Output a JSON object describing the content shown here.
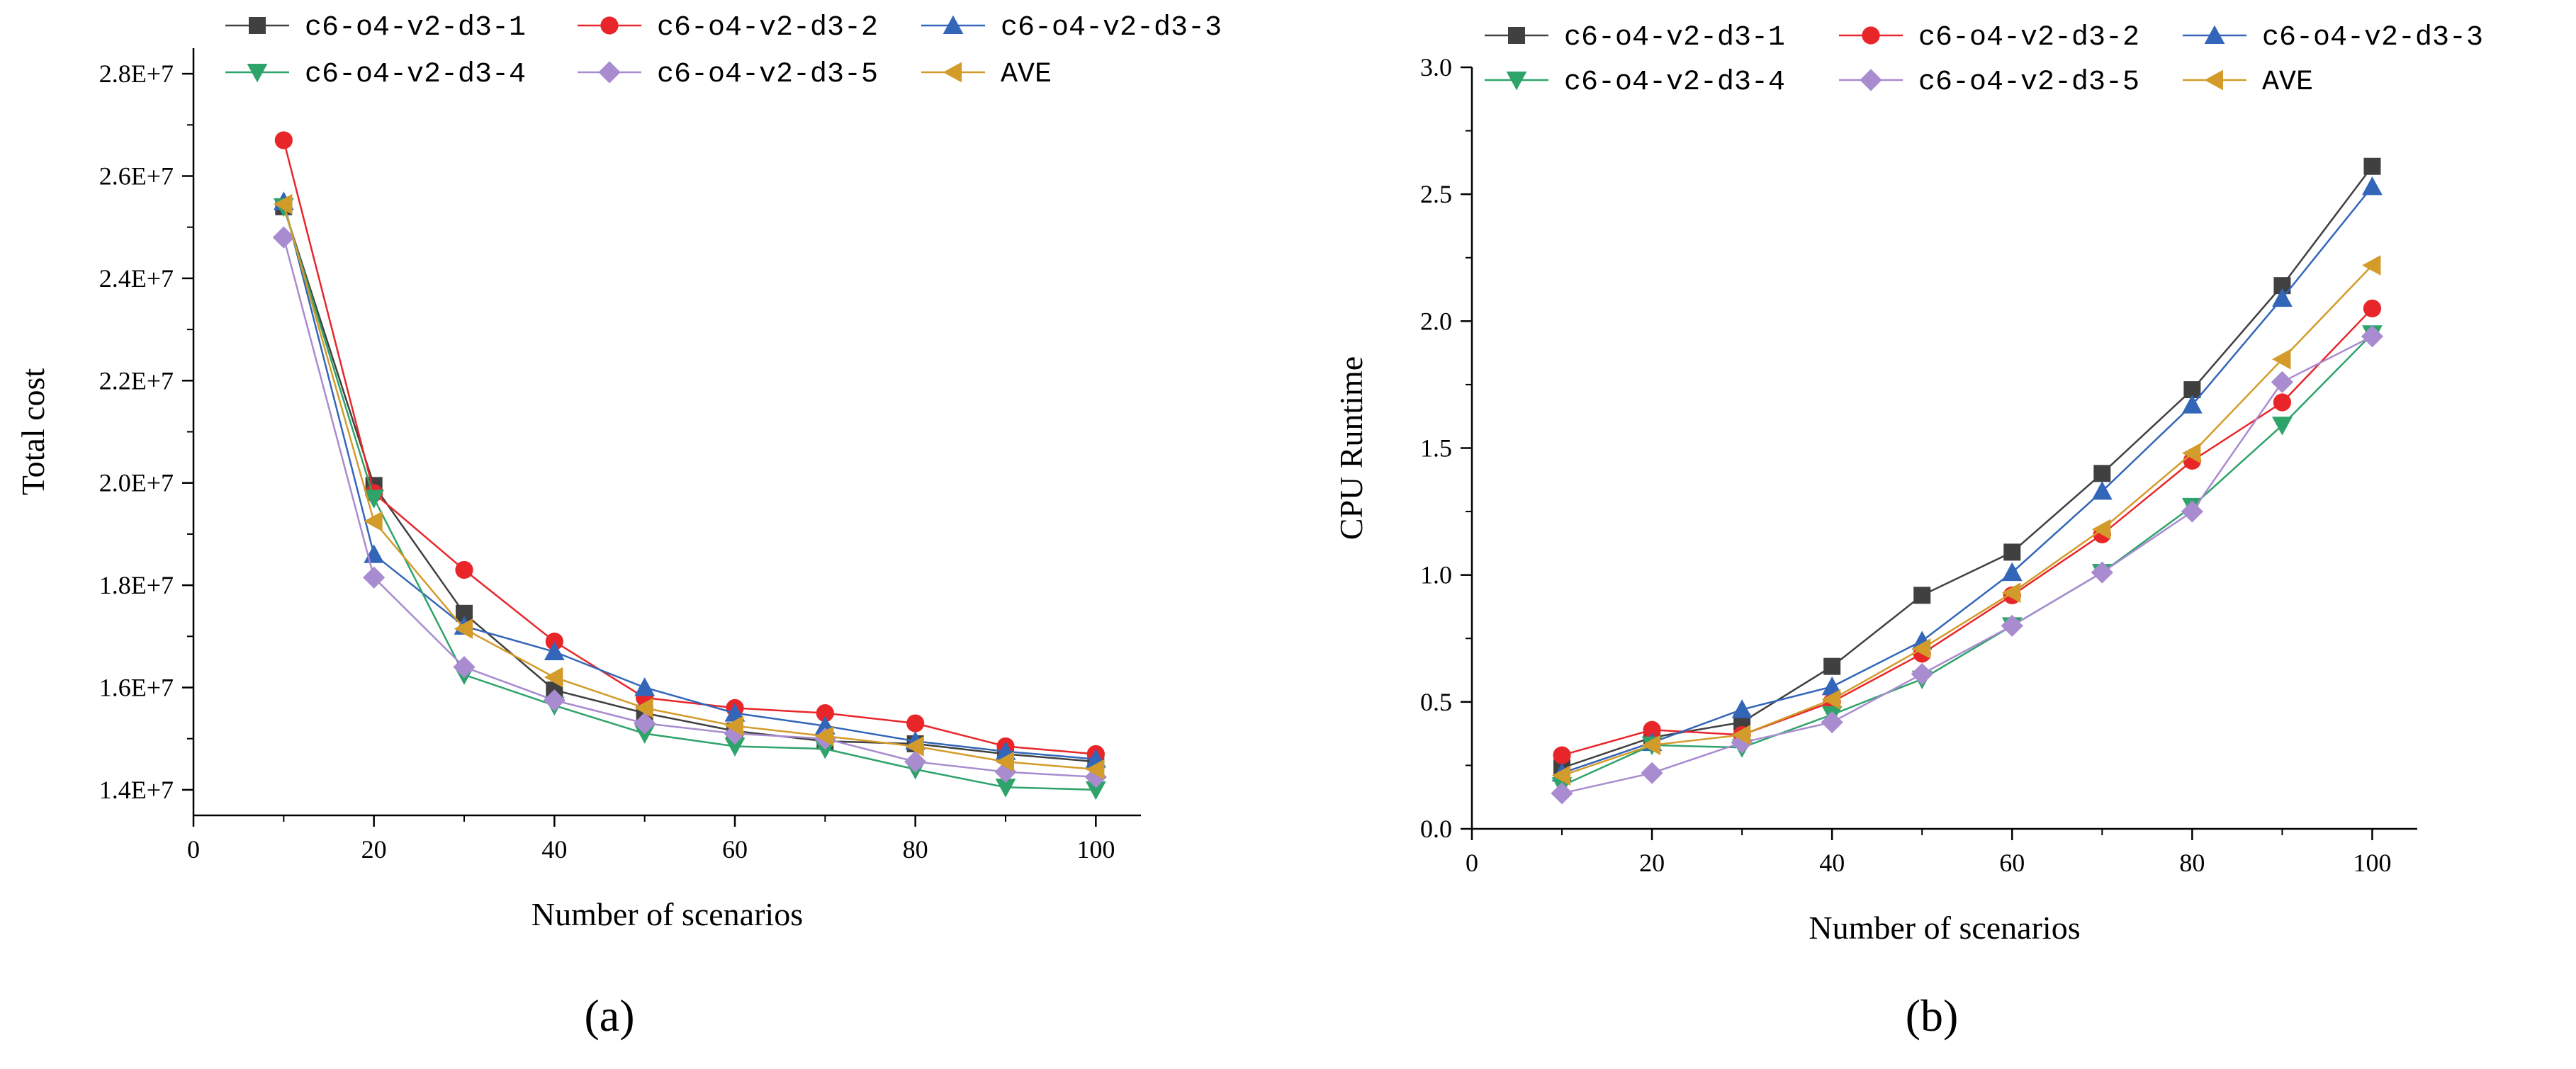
{
  "chart_data": [
    {
      "type": "line",
      "panel_label": "(a)",
      "xlabel": "Number of scenarios",
      "ylabel": "Total cost",
      "xlim": [
        0,
        105
      ],
      "ylim": [
        13500000,
        28500000
      ],
      "x_ticks": [
        0,
        20,
        40,
        60,
        80,
        100
      ],
      "x_tick_labels": [
        "0",
        "20",
        "40",
        "60",
        "80",
        "100"
      ],
      "y_ticks": [
        14000000,
        16000000,
        18000000,
        20000000,
        22000000,
        24000000,
        26000000,
        28000000
      ],
      "y_tick_labels": [
        "1.4E+7",
        "1.6E+7",
        "1.8E+7",
        "2.0E+7",
        "2.2E+7",
        "2.4E+7",
        "2.6E+7",
        "2.8E+7"
      ],
      "grid": false,
      "legend_position": "top",
      "x": [
        10,
        20,
        30,
        40,
        50,
        60,
        70,
        80,
        90,
        100
      ],
      "series": [
        {
          "name": "c6-o4-v2-d3-1",
          "color": "#404040",
          "marker": "square",
          "values": [
            25400000,
            19950000,
            17450000,
            15950000,
            15500000,
            15150000,
            14950000,
            14900000,
            14700000,
            14550000
          ]
        },
        {
          "name": "c6-o4-v2-d3-2",
          "color": "#e8262a",
          "marker": "circle",
          "values": [
            26700000,
            19800000,
            18300000,
            16900000,
            15800000,
            15600000,
            15500000,
            15300000,
            14850000,
            14700000
          ]
        },
        {
          "name": "c6-o4-v2-d3-3",
          "color": "#3366b8",
          "marker": "triangle-up",
          "values": [
            25500000,
            18600000,
            17200000,
            16700000,
            16000000,
            15500000,
            15250000,
            14950000,
            14750000,
            14600000
          ]
        },
        {
          "name": "c6-o4-v2-d3-4",
          "color": "#2ea36a",
          "marker": "triangle-down",
          "values": [
            25400000,
            19700000,
            16250000,
            15650000,
            15100000,
            14850000,
            14800000,
            14400000,
            14050000,
            14000000
          ]
        },
        {
          "name": "c6-o4-v2-d3-5",
          "color": "#a98bd0",
          "marker": "diamond",
          "values": [
            24800000,
            18150000,
            16400000,
            15750000,
            15300000,
            15100000,
            15000000,
            14550000,
            14350000,
            14250000
          ]
        },
        {
          "name": "AVE",
          "color": "#d39b2a",
          "marker": "triangle-left",
          "values": [
            25450000,
            19250000,
            17150000,
            16200000,
            15600000,
            15250000,
            15050000,
            14850000,
            14550000,
            14400000
          ]
        }
      ]
    },
    {
      "type": "line",
      "panel_label": "(b)",
      "xlabel": "Number of scenarios",
      "ylabel": "CPU Runtime",
      "xlim": [
        0,
        105
      ],
      "ylim": [
        0,
        3.0
      ],
      "x_ticks": [
        0,
        20,
        40,
        60,
        80,
        100
      ],
      "x_tick_labels": [
        "0",
        "20",
        "40",
        "60",
        "80",
        "100"
      ],
      "y_ticks": [
        0,
        0.5,
        1.0,
        1.5,
        2.0,
        2.5,
        3.0
      ],
      "y_tick_labels": [
        "0.0",
        "0.5",
        "1.0",
        "1.5",
        "2.0",
        "2.5",
        "3.0"
      ],
      "grid": false,
      "legend_position": "top",
      "x": [
        10,
        20,
        30,
        40,
        50,
        60,
        70,
        80,
        90,
        100
      ],
      "series": [
        {
          "name": "c6-o4-v2-d3-1",
          "color": "#404040",
          "marker": "square",
          "values": [
            0.24,
            0.36,
            0.42,
            0.64,
            0.92,
            1.09,
            1.4,
            1.73,
            2.14,
            2.61
          ]
        },
        {
          "name": "c6-o4-v2-d3-2",
          "color": "#e8262a",
          "marker": "circle",
          "values": [
            0.29,
            0.39,
            0.37,
            0.5,
            0.69,
            0.92,
            1.16,
            1.45,
            1.68,
            2.05
          ]
        },
        {
          "name": "c6-o4-v2-d3-3",
          "color": "#3366b8",
          "marker": "triangle-up",
          "values": [
            0.22,
            0.34,
            0.47,
            0.56,
            0.74,
            1.01,
            1.33,
            1.67,
            2.09,
            2.53
          ]
        },
        {
          "name": "c6-o4-v2-d3-4",
          "color": "#2ea36a",
          "marker": "triangle-down",
          "values": [
            0.17,
            0.33,
            0.32,
            0.45,
            0.59,
            0.8,
            1.01,
            1.27,
            1.59,
            1.95
          ]
        },
        {
          "name": "c6-o4-v2-d3-5",
          "color": "#a98bd0",
          "marker": "diamond",
          "values": [
            0.14,
            0.22,
            0.34,
            0.42,
            0.61,
            0.8,
            1.01,
            1.25,
            1.76,
            1.94
          ]
        },
        {
          "name": "AVE",
          "color": "#d39b2a",
          "marker": "triangle-left",
          "values": [
            0.21,
            0.33,
            0.37,
            0.51,
            0.71,
            0.93,
            1.18,
            1.48,
            1.85,
            2.22
          ]
        }
      ]
    }
  ]
}
